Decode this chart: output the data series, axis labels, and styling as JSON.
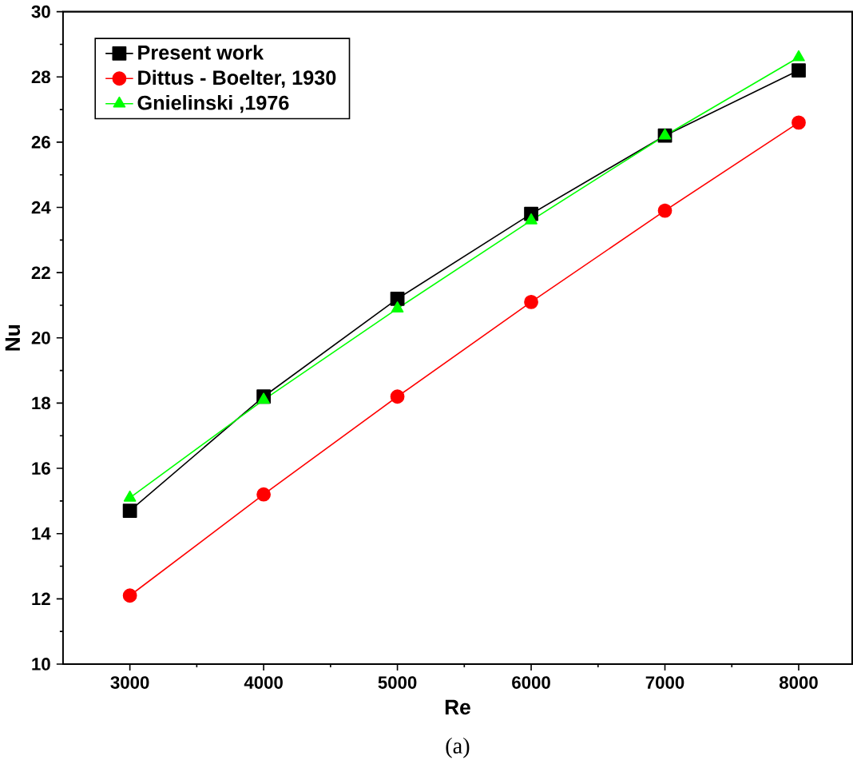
{
  "chart_data": {
    "type": "line",
    "xlabel": "Re",
    "ylabel": "Nu",
    "x": [
      3000,
      4000,
      5000,
      6000,
      7000,
      8000
    ],
    "series": [
      {
        "name": "Present work",
        "color": "#000000",
        "marker": "square",
        "values": [
          14.7,
          18.2,
          21.2,
          23.8,
          26.2,
          28.2
        ]
      },
      {
        "name": "Dittus - Boelter, 1930",
        "color": "#ff0000",
        "marker": "circle",
        "values": [
          12.1,
          15.2,
          18.2,
          21.1,
          23.9,
          26.6
        ]
      },
      {
        "name": "Gnielinski ,1976",
        "color": "#00ff00",
        "marker": "triangle",
        "values": [
          15.1,
          18.1,
          20.9,
          23.6,
          26.2,
          28.6
        ]
      }
    ],
    "xlim": [
      2500,
      8400
    ],
    "ylim": [
      10,
      30
    ],
    "xticks": [
      3000,
      4000,
      5000,
      6000,
      7000,
      8000
    ],
    "yticks": [
      10,
      12,
      14,
      16,
      18,
      20,
      22,
      24,
      26,
      28,
      30
    ],
    "legend": "top left",
    "grid": false,
    "line_style": "solid",
    "annotations": [
      "(a)"
    ]
  }
}
